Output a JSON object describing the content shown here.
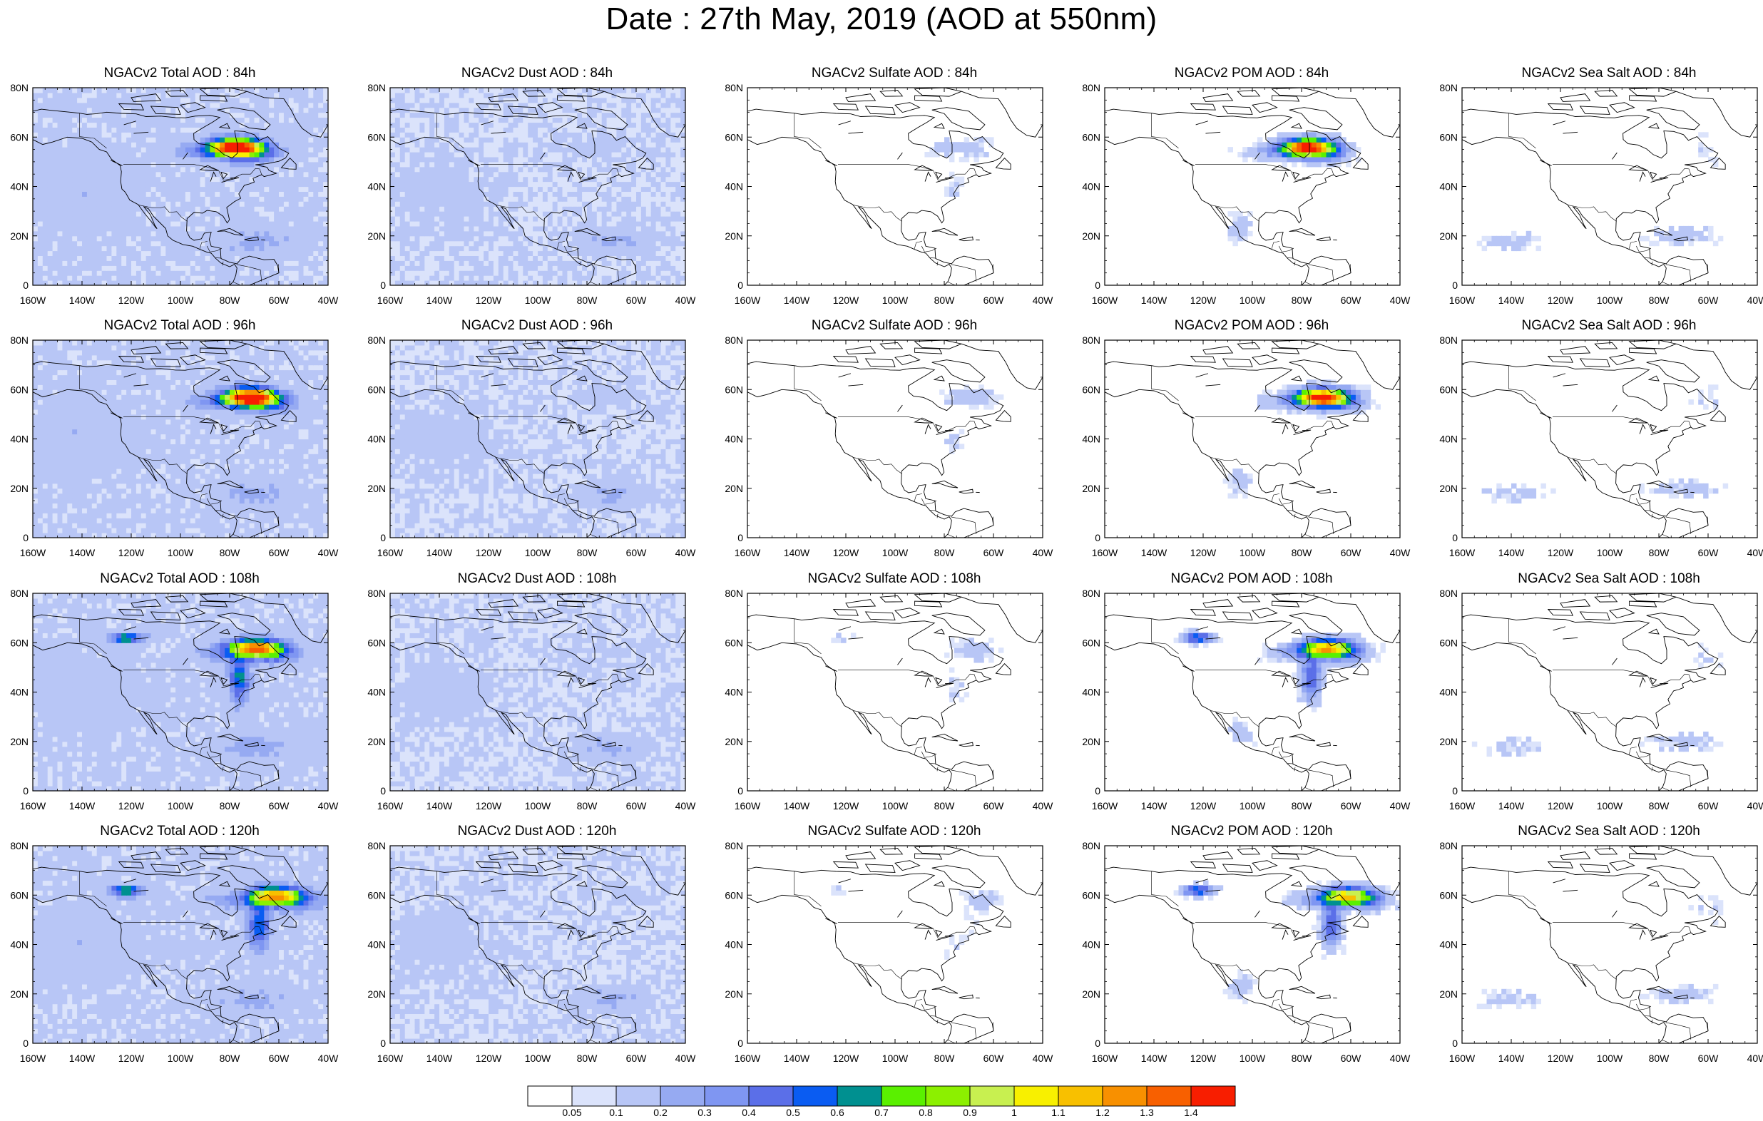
{
  "title": "Date : 27th May, 2019 (AOD at 550nm)",
  "forecast_hours": [
    "84h",
    "96h",
    "108h",
    "120h"
  ],
  "species": [
    "Total",
    "Dust",
    "Sulfate",
    "POM",
    "Sea Salt"
  ],
  "panel_titles": [
    [
      "NGACv2 Total AOD : 84h",
      "NGACv2 Dust AOD : 84h",
      "NGACv2 Sulfate AOD : 84h",
      "NGACv2 POM AOD : 84h",
      "NGACv2 Sea Salt AOD : 84h"
    ],
    [
      "NGACv2 Total AOD : 96h",
      "NGACv2 Dust AOD : 96h",
      "NGACv2 Sulfate AOD : 96h",
      "NGACv2 POM AOD : 96h",
      "NGACv2 Sea Salt AOD : 96h"
    ],
    [
      "NGACv2 Total AOD : 108h",
      "NGACv2 Dust AOD : 108h",
      "NGACv2 Sulfate AOD : 108h",
      "NGACv2 POM AOD : 108h",
      "NGACv2 Sea Salt AOD : 108h"
    ],
    [
      "NGACv2 Total AOD : 120h",
      "NGACv2 Dust AOD : 120h",
      "NGACv2 Sulfate AOD : 120h",
      "NGACv2 POM AOD : 120h",
      "NGACv2 Sea Salt  AOD : 120h"
    ]
  ],
  "map": {
    "lon_range": [
      -160,
      -40
    ],
    "lat_range": [
      0,
      80
    ],
    "lon_ticks": [
      "160W",
      "140W",
      "120W",
      "100W",
      "80W",
      "60W",
      "40W"
    ],
    "lat_ticks": [
      "0",
      "20N",
      "40N",
      "60N",
      "80N"
    ]
  },
  "colorbar": {
    "levels": [
      "0.05",
      "0.1",
      "0.2",
      "0.3",
      "0.4",
      "0.5",
      "0.6",
      "0.7",
      "0.8",
      "0.9",
      "1",
      "1.1",
      "1.2",
      "1.3",
      "1.4"
    ],
    "colors": [
      "#ffffff",
      "#dbe3fb",
      "#b8c6f6",
      "#96aaf2",
      "#7f96f2",
      "#5b6fe8",
      "#0a5cf2",
      "#009090",
      "#5af000",
      "#8cf000",
      "#c8f050",
      "#f8f000",
      "#f8c000",
      "#f89000",
      "#f86000",
      "#f81e00"
    ]
  },
  "smoke_plume": {
    "84h": {
      "lon": -78,
      "lat": 56,
      "peak_aod": 1.4
    },
    "96h": {
      "lon": -72,
      "lat": 57,
      "peak_aod": 1.4
    },
    "108h": {
      "lon": -70,
      "lat": 58,
      "peak_aod": 1.0
    },
    "120h": {
      "lon": -62,
      "lat": 60,
      "peak_aod": 0.9
    }
  }
}
